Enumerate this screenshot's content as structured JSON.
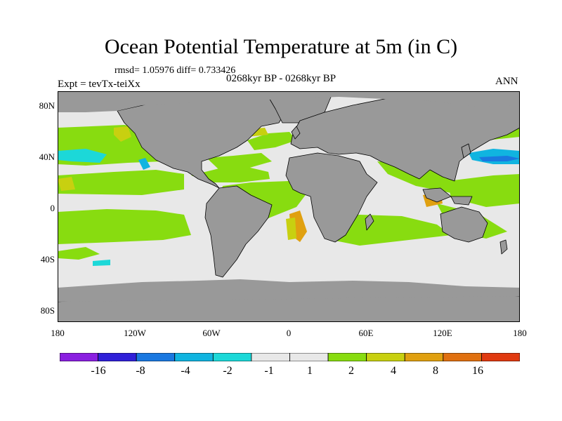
{
  "title": "Ocean Potential Temperature at 5m (in C)",
  "stats": "rmsd= 1.05976 diff= 0.733426",
  "experiment": "Expt = tevTx-teiXx",
  "period": "0268kyr BP - 0268kyr BP",
  "season": "ANN",
  "lat_ticks": [
    "80N",
    "40N",
    "0",
    "40S",
    "80S"
  ],
  "lon_ticks": [
    "180",
    "120W",
    "60W",
    "0",
    "60E",
    "120E",
    "180"
  ],
  "colorbar": {
    "colors": [
      "#8a1fe0",
      "#3020d8",
      "#1a78e0",
      "#10b4e0",
      "#1cd8d8",
      "#e8e8e8",
      "#e8e8e8",
      "#88dc10",
      "#c8d010",
      "#e0a010",
      "#e07010",
      "#e03a10"
    ],
    "labels": [
      "-16",
      "-8",
      "-4",
      "-2",
      "-1",
      "1",
      "2",
      "4",
      "8",
      "16"
    ]
  },
  "map_colors": {
    "land": "#999999",
    "ocean_near_zero": "#e8e8e8",
    "warm_1_2": "#88dc10",
    "warm_2_4": "#c8d010",
    "warm_4_8": "#e0a010",
    "cool_1_2": "#1cd8d8",
    "cool_2_4": "#10b4e0"
  }
}
